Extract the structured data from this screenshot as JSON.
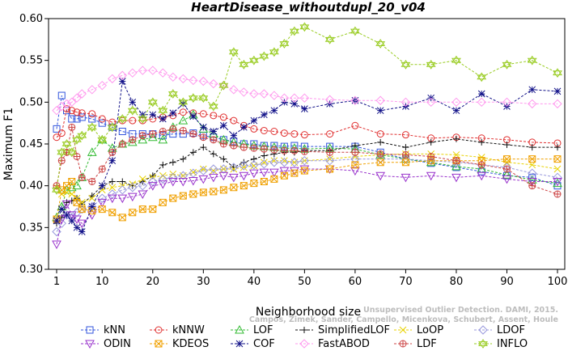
{
  "chart_data": {
    "type": "line",
    "title": "HeartDisease_withoutdupl_20_v04",
    "xlabel": "Neighborhood size",
    "ylabel": "Maximum F1",
    "xlim": [
      1,
      100
    ],
    "ylim": [
      0.3,
      0.6
    ],
    "xticks": [
      1,
      10,
      20,
      30,
      40,
      50,
      60,
      70,
      80,
      90,
      100
    ],
    "yticks": [
      "0.30",
      "0.35",
      "0.40",
      "0.45",
      "0.50",
      "0.55",
      "0.60"
    ],
    "legend_position": "bottom",
    "x_sample_points": [
      1,
      2,
      3,
      4,
      5,
      6,
      8,
      10,
      12,
      14,
      16,
      18,
      20,
      22,
      24,
      26,
      28,
      30,
      32,
      34,
      36,
      38,
      40,
      42,
      44,
      46,
      48,
      50,
      55,
      60,
      65,
      70,
      75,
      80,
      85,
      90,
      95,
      100
    ],
    "series": [
      {
        "name": "kNN",
        "color": "#3355dd",
        "marker": "square",
        "values": [
          0.468,
          0.508,
          0.49,
          0.48,
          0.48,
          0.482,
          0.48,
          0.475,
          0.47,
          0.465,
          0.462,
          0.462,
          0.462,
          0.46,
          0.462,
          0.462,
          0.463,
          0.46,
          0.458,
          0.455,
          0.453,
          0.45,
          0.45,
          0.448,
          0.448,
          0.447,
          0.448,
          0.447,
          0.447,
          0.447,
          0.44,
          0.432,
          0.427,
          0.422,
          0.417,
          0.412,
          0.41,
          0.4
        ]
      },
      {
        "name": "kNNW",
        "color": "#e03030",
        "marker": "circle",
        "values": [
          0.458,
          0.463,
          0.492,
          0.49,
          0.488,
          0.487,
          0.486,
          0.48,
          0.476,
          0.478,
          0.478,
          0.478,
          0.48,
          0.482,
          0.484,
          0.488,
          0.487,
          0.486,
          0.484,
          0.482,
          0.478,
          0.472,
          0.468,
          0.466,
          0.465,
          0.463,
          0.462,
          0.461,
          0.462,
          0.472,
          0.462,
          0.461,
          0.457,
          0.458,
          0.457,
          0.455,
          0.452,
          0.451
        ]
      },
      {
        "name": "LOF",
        "color": "#33bb33",
        "marker": "triangle-up",
        "values": [
          0.362,
          0.375,
          0.395,
          0.398,
          0.4,
          0.41,
          0.44,
          0.455,
          0.445,
          0.45,
          0.452,
          0.455,
          0.458,
          0.455,
          0.47,
          0.478,
          0.485,
          0.468,
          0.462,
          0.455,
          0.452,
          0.45,
          0.448,
          0.447,
          0.446,
          0.445,
          0.445,
          0.444,
          0.445,
          0.444,
          0.437,
          0.432,
          0.428,
          0.423,
          0.42,
          0.413,
          0.407,
          0.403
        ]
      },
      {
        "name": "SimplifiedLOF",
        "color": "#111111",
        "marker": "plus",
        "values": [
          0.355,
          0.362,
          0.38,
          0.382,
          0.385,
          0.378,
          0.388,
          0.4,
          0.405,
          0.405,
          0.4,
          0.405,
          0.412,
          0.425,
          0.428,
          0.432,
          0.44,
          0.446,
          0.438,
          0.432,
          0.422,
          0.428,
          0.432,
          0.436,
          0.438,
          0.44,
          0.44,
          0.442,
          0.442,
          0.448,
          0.452,
          0.446,
          0.452,
          0.456,
          0.452,
          0.449,
          0.446,
          0.446
        ]
      },
      {
        "name": "LoOP",
        "color": "#e8d200",
        "marker": "x",
        "values": [
          0.398,
          0.39,
          0.392,
          0.39,
          0.385,
          0.38,
          0.385,
          0.395,
          0.398,
          0.4,
          0.402,
          0.408,
          0.41,
          0.412,
          0.414,
          0.412,
          0.416,
          0.42,
          0.418,
          0.42,
          0.42,
          0.422,
          0.424,
          0.428,
          0.43,
          0.43,
          0.428,
          0.43,
          0.432,
          0.435,
          0.437,
          0.438,
          0.438,
          0.437,
          0.434,
          0.428,
          0.425,
          0.42
        ]
      },
      {
        "name": "LDOF",
        "color": "#9999dd",
        "marker": "diamond",
        "values": [
          0.345,
          0.355,
          0.365,
          0.362,
          0.368,
          0.372,
          0.375,
          0.385,
          0.39,
          0.395,
          0.398,
          0.4,
          0.405,
          0.408,
          0.41,
          0.412,
          0.415,
          0.418,
          0.42,
          0.42,
          0.422,
          0.424,
          0.425,
          0.426,
          0.428,
          0.428,
          0.428,
          0.43,
          0.43,
          0.432,
          0.432,
          0.432,
          0.43,
          0.428,
          0.425,
          0.422,
          0.415,
          0.41
        ]
      },
      {
        "name": "ODIN",
        "color": "#9933cc",
        "marker": "triangle-down",
        "values": [
          0.33,
          0.36,
          0.378,
          0.365,
          0.36,
          0.355,
          0.365,
          0.38,
          0.385,
          0.385,
          0.387,
          0.39,
          0.4,
          0.402,
          0.405,
          0.405,
          0.406,
          0.408,
          0.41,
          0.412,
          0.41,
          0.412,
          0.415,
          0.416,
          0.416,
          0.418,
          0.418,
          0.42,
          0.42,
          0.418,
          0.412,
          0.41,
          0.412,
          0.41,
          0.412,
          0.408,
          0.405,
          0.405
        ]
      },
      {
        "name": "KDEOS",
        "color": "#f0a000",
        "marker": "square-x",
        "values": [
          0.36,
          0.395,
          0.4,
          0.405,
          0.38,
          0.372,
          0.37,
          0.372,
          0.368,
          0.362,
          0.368,
          0.372,
          0.372,
          0.38,
          0.385,
          0.388,
          0.39,
          0.392,
          0.393,
          0.395,
          0.398,
          0.4,
          0.403,
          0.405,
          0.408,
          0.412,
          0.415,
          0.418,
          0.42,
          0.425,
          0.428,
          0.428,
          0.43,
          0.43,
          0.43,
          0.432,
          0.432,
          0.432
        ]
      },
      {
        "name": "COF",
        "color": "#111188",
        "marker": "star",
        "values": [
          0.358,
          0.372,
          0.365,
          0.358,
          0.35,
          0.345,
          0.375,
          0.4,
          0.43,
          0.525,
          0.5,
          0.485,
          0.485,
          0.48,
          0.487,
          0.498,
          0.483,
          0.47,
          0.465,
          0.472,
          0.46,
          0.47,
          0.478,
          0.485,
          0.49,
          0.5,
          0.498,
          0.492,
          0.498,
          0.502,
          0.49,
          0.495,
          0.505,
          0.49,
          0.51,
          0.495,
          0.515,
          0.513
        ]
      },
      {
        "name": "FastABOD",
        "color": "#ff99ee",
        "marker": "diamond",
        "values": [
          0.49,
          0.495,
          0.498,
          0.5,
          0.505,
          0.51,
          0.515,
          0.52,
          0.528,
          0.532,
          0.535,
          0.538,
          0.538,
          0.535,
          0.53,
          0.528,
          0.526,
          0.525,
          0.522,
          0.52,
          0.515,
          0.512,
          0.51,
          0.51,
          0.508,
          0.505,
          0.505,
          0.505,
          0.503,
          0.502,
          0.502,
          0.5,
          0.5,
          0.5,
          0.5,
          0.5,
          0.498,
          0.498
        ]
      },
      {
        "name": "LDF",
        "color": "#cc4444",
        "marker": "circle-plus",
        "values": [
          0.4,
          0.43,
          0.44,
          0.47,
          0.435,
          0.41,
          0.405,
          0.42,
          0.44,
          0.45,
          0.455,
          0.46,
          0.462,
          0.465,
          0.468,
          0.466,
          0.462,
          0.458,
          0.455,
          0.45,
          0.448,
          0.446,
          0.445,
          0.444,
          0.443,
          0.442,
          0.442,
          0.441,
          0.44,
          0.44,
          0.438,
          0.437,
          0.435,
          0.43,
          0.425,
          0.42,
          0.4,
          0.39
        ]
      },
      {
        "name": "INFLO",
        "color": "#99cc22",
        "marker": "hexagram",
        "values": [
          0.395,
          0.44,
          0.45,
          0.44,
          0.455,
          0.46,
          0.47,
          0.455,
          0.47,
          0.48,
          0.49,
          0.48,
          0.5,
          0.49,
          0.51,
          0.5,
          0.505,
          0.505,
          0.495,
          0.52,
          0.56,
          0.545,
          0.55,
          0.555,
          0.56,
          0.57,
          0.585,
          0.59,
          0.575,
          0.585,
          0.57,
          0.545,
          0.545,
          0.55,
          0.53,
          0.545,
          0.55,
          0.535
        ]
      }
    ]
  },
  "watermark": {
    "line1": "Unsupervised Outlier Detection. DAMI, 2015.",
    "line2": "Campos, Zimek, Sander, Campello, Micenkova, Schubert, Assent, Houle"
  }
}
